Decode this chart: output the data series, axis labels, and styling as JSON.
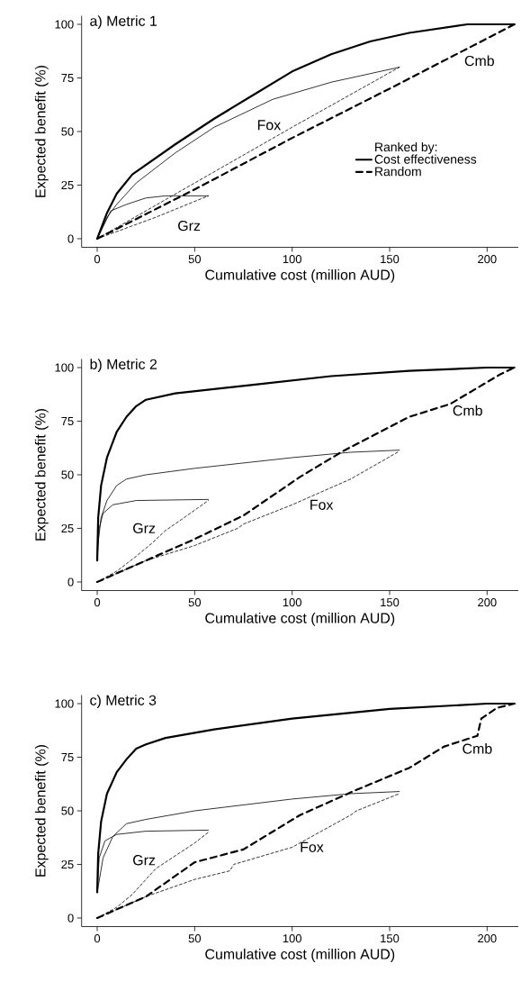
{
  "chart_data": [
    {
      "type": "line",
      "title": "a) Metric 1",
      "xlabel": "Cumulative cost (million AUD)",
      "ylabel": "Expected benefit (%)",
      "xlim": [
        -8,
        216
      ],
      "ylim": [
        -4,
        104
      ],
      "xticks": [
        0,
        50,
        100,
        150,
        200
      ],
      "yticks": [
        0,
        25,
        50,
        75,
        100
      ],
      "legend": "right",
      "legend_title": "Ranked by:",
      "series": [
        {
          "name": "Cost effectiveness",
          "color": "#000000",
          "line_style": "solid",
          "x": [
            0,
            5,
            10,
            18,
            40,
            60,
            80,
            100,
            120,
            140,
            160,
            190,
            214
          ],
          "values": [
            0,
            12,
            21,
            30,
            44,
            56,
            67,
            78,
            86,
            92,
            96,
            100,
            100
          ]
        },
        {
          "name": "Random",
          "color": "#000000",
          "line_style": "dashed",
          "x": [
            0,
            50,
            100,
            150,
            214
          ],
          "values": [
            0,
            23,
            47,
            70,
            100
          ]
        },
        {
          "color": "#000000",
          "line_style": "solid",
          "x": [
            0,
            5,
            10,
            20,
            40,
            60,
            90,
            120,
            155
          ],
          "values": [
            0,
            10,
            16,
            26,
            40,
            52,
            65,
            73,
            80
          ]
        },
        {
          "color": "#000000",
          "line_style": "dashed",
          "x": [
            0,
            50,
            100,
            155
          ],
          "values": [
            0,
            26,
            52,
            80
          ]
        },
        {
          "color": "#000000",
          "line_style": "solid",
          "x": [
            0,
            7,
            15,
            25,
            35,
            57
          ],
          "values": [
            0,
            13,
            16,
            19,
            20,
            20
          ]
        },
        {
          "color": "#000000",
          "line_style": "dashed",
          "x": [
            0,
            30,
            57
          ],
          "values": [
            0,
            10,
            20
          ]
        }
      ],
      "annotations": [
        "Cmb",
        "Fox",
        "Grz"
      ]
    },
    {
      "type": "line",
      "title": "b) Metric 2",
      "xlabel": "Cumulative cost (million AUD)",
      "ylabel": "Expected benefit (%)",
      "xlim": [
        -8,
        216
      ],
      "ylim": [
        -4,
        104
      ],
      "xticks": [
        0,
        50,
        100,
        150,
        200
      ],
      "yticks": [
        0,
        25,
        50,
        75,
        100
      ],
      "series": [
        {
          "color": "#000000",
          "line_style": "solid",
          "x": [
            0,
            0.5,
            2,
            5,
            10,
            15,
            20,
            25,
            40,
            80,
            120,
            160,
            200,
            214
          ],
          "values": [
            10,
            30,
            45,
            58,
            70,
            77,
            82,
            85,
            88,
            92,
            96,
            98.5,
            100,
            100
          ]
        },
        {
          "color": "#000000",
          "line_style": "dashed",
          "x": [
            0,
            25,
            50,
            75,
            104,
            126,
            160,
            181,
            207,
            214
          ],
          "values": [
            0,
            10,
            20,
            31,
            49,
            61,
            77,
            83,
            97,
            100
          ]
        },
        {
          "color": "#000000",
          "line_style": "solid",
          "x": [
            0,
            2,
            5,
            10,
            15,
            25,
            50,
            100,
            130,
            155
          ],
          "values": [
            15,
            30,
            38,
            45,
            48,
            50,
            53,
            58,
            60.5,
            61.5
          ]
        },
        {
          "color": "#000000",
          "line_style": "dashed",
          "x": [
            0,
            25,
            50,
            72,
            75,
            100,
            130,
            155
          ],
          "values": [
            0,
            10,
            17,
            25,
            27,
            36,
            48,
            61
          ]
        },
        {
          "color": "#000000",
          "line_style": "solid",
          "x": [
            0,
            1,
            3,
            8,
            20,
            57
          ],
          "values": [
            10,
            25,
            32,
            36,
            38,
            38.5
          ]
        },
        {
          "color": "#000000",
          "line_style": "dashed",
          "x": [
            0,
            10,
            20,
            28,
            35,
            43,
            57
          ],
          "values": [
            0,
            5,
            12,
            18,
            24,
            29,
            38
          ]
        }
      ],
      "annotations": [
        "Cmb",
        "Fox",
        "Grz"
      ]
    },
    {
      "type": "line",
      "title": "c) Metric 3",
      "xlabel": "Cumulative cost (million AUD)",
      "ylabel": "Expected benefit (%)",
      "xlim": [
        -8,
        216
      ],
      "ylim": [
        -4,
        104
      ],
      "xticks": [
        0,
        50,
        100,
        150,
        200
      ],
      "yticks": [
        0,
        25,
        50,
        75,
        100
      ],
      "series": [
        {
          "color": "#000000",
          "line_style": "solid",
          "x": [
            0,
            0.5,
            2,
            5,
            10,
            15,
            20,
            25,
            35,
            60,
            100,
            150,
            200,
            214
          ],
          "values": [
            12,
            30,
            45,
            58,
            68,
            74,
            79,
            81,
            84,
            88,
            93,
            97.5,
            100,
            100
          ]
        },
        {
          "color": "#000000",
          "line_style": "dashed",
          "x": [
            0,
            25,
            50,
            75,
            104,
            131,
            160,
            178,
            195,
            197,
            205,
            214
          ],
          "values": [
            0,
            10,
            26,
            32,
            48,
            59,
            70,
            80,
            85,
            93,
            98,
            100
          ]
        },
        {
          "color": "#000000",
          "line_style": "solid",
          "x": [
            0,
            3,
            8,
            15,
            25,
            50,
            100,
            130,
            155
          ],
          "values": [
            12,
            28,
            38,
            44,
            46,
            50,
            55.5,
            58,
            59
          ]
        },
        {
          "color": "#000000",
          "line_style": "dashed",
          "x": [
            0,
            25,
            50,
            68,
            70,
            100,
            130,
            133,
            155
          ],
          "values": [
            0,
            10,
            18,
            22,
            25,
            33,
            48,
            50,
            58
          ]
        },
        {
          "color": "#000000",
          "line_style": "solid",
          "x": [
            0,
            1,
            4,
            10,
            25,
            57
          ],
          "values": [
            12,
            28,
            36,
            39,
            40.5,
            41
          ]
        },
        {
          "color": "#000000",
          "line_style": "dashed",
          "x": [
            0,
            10,
            18,
            22,
            30,
            40,
            50,
            57
          ],
          "values": [
            0,
            5,
            11,
            15,
            23,
            29,
            35,
            40
          ]
        }
      ],
      "annotations": [
        "Cmb",
        "Fox",
        "Grz"
      ]
    }
  ]
}
